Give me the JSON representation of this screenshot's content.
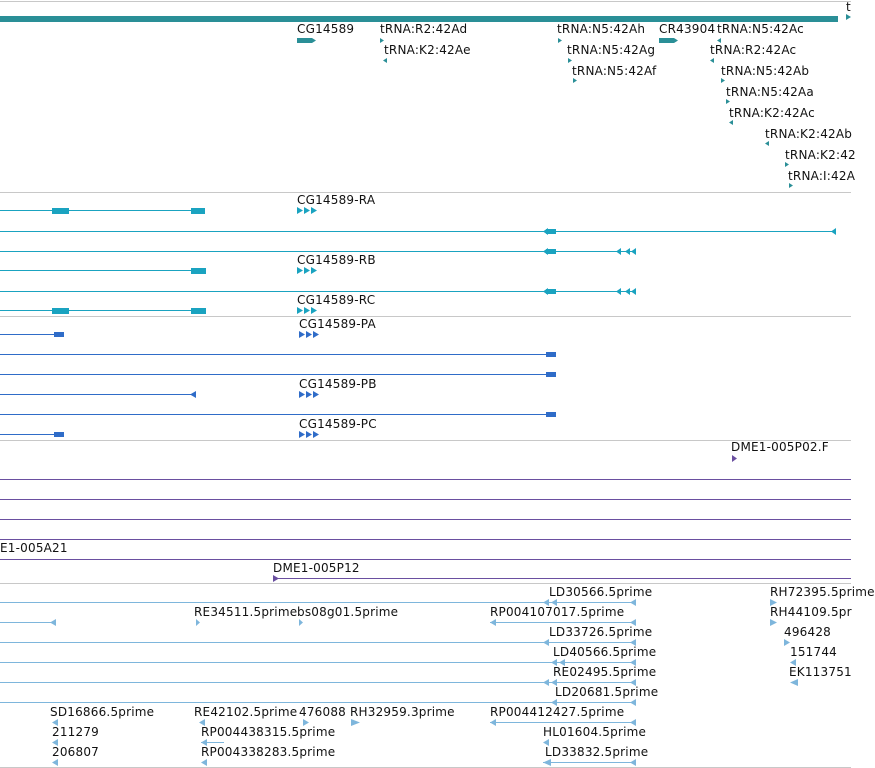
{
  "colors": {
    "gene": "#2a8f97",
    "transcript": "#1aa3c0",
    "protein": "#2f6cc8",
    "clone": "#6a4fa0",
    "est": "#7eb6dc",
    "divider": "#c8c8c8"
  },
  "labels": {
    "top_t": "t",
    "gene_cg14589": "CG14589",
    "trna_r2_42ad": "tRNA:R2:42Ad",
    "trna_k2_42ae": "tRNA:K2:42Ae",
    "trna_n5_42ah": "tRNA:N5:42Ah",
    "trna_n5_42ag": "tRNA:N5:42Ag",
    "trna_n5_42af": "tRNA:N5:42Af",
    "cr43904": "CR43904",
    "trna_n5_42ac": "tRNA:N5:42Ac",
    "trna_r2_42ac": "tRNA:R2:42Ac",
    "trna_n5_42ab": "tRNA:N5:42Ab",
    "trna_n5_42aa": "tRNA:N5:42Aa",
    "trna_k2_42ac": "tRNA:K2:42Ac",
    "trna_k2_42ab": "tRNA:K2:42Ab",
    "trna_k2_42_cut": "tRNA:K2:42",
    "trna_i_42a_cut": "tRNA:I:42A",
    "tx_ra": "CG14589-RA",
    "tx_rb": "CG14589-RB",
    "tx_rc": "CG14589-RC",
    "pr_pa": "CG14589-PA",
    "pr_pb": "CG14589-PB",
    "pr_pc": "CG14589-PC",
    "clone_005p02": "DME1-005P02.F",
    "clone_005a21": "E1-005A21",
    "clone_005p12": "DME1-005P12",
    "est": {
      "ld30566": "LD30566.5prime",
      "rh72395": "RH72395.5prime",
      "re34511": "RE34511.5prime",
      "bs08g01": "bs08g01.5prime",
      "rp004107017": "RP004107017.5prime",
      "rh44109": "RH44109.5pr",
      "ld33726": "LD33726.5prime",
      "n496428": "496428",
      "ld40566": "LD40566.5prime",
      "n151744": "151744",
      "re02495": "RE02495.5prime",
      "ek113751": "EK113751",
      "ld20681": "LD20681.5prime",
      "sd16866": "SD16866.5prime",
      "re42102": "RE42102.5prime",
      "n476088": "476088",
      "rh32959": "RH32959.3prime",
      "rp004412427": "RP004412427.5prime",
      "n211279": "211279",
      "rp004438315": "RP004438315.5prime",
      "hl01604": "HL01604.5prime",
      "n206807": "206807",
      "rp004338283": "RP004338283.5prime",
      "ld33832": "LD33832.5prime"
    }
  }
}
